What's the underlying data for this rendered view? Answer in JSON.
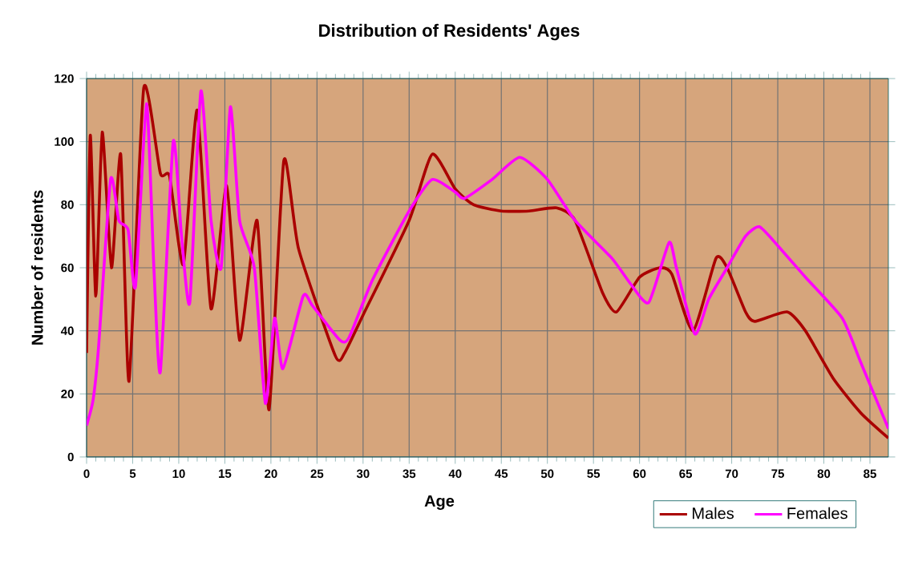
{
  "chart_data": {
    "type": "line",
    "title": "Distribution of Residents' Ages",
    "xlabel": "Age",
    "ylabel": "Number of residents",
    "xlim": [
      0,
      87
    ],
    "xticks": [
      0,
      5,
      10,
      15,
      20,
      25,
      30,
      35,
      40,
      45,
      50,
      55,
      60,
      65,
      70,
      75,
      80,
      85
    ],
    "ylim": [
      0,
      120
    ],
    "yticks": [
      0,
      20,
      40,
      60,
      80,
      100,
      120
    ],
    "grid": true,
    "legend": "bottom right",
    "marker": "none",
    "line_style": "solid",
    "series": [
      {
        "name": "Males",
        "color": "#aa0000",
        "x": [
          0,
          0.4,
          1,
          1.7,
          2.7,
          3.7,
          4.6,
          6.2,
          8,
          9,
          10.5,
          12,
          13.5,
          15.2,
          16.6,
          18.5,
          19.8,
          21.4,
          23,
          27,
          28,
          30,
          35,
          37.5,
          40,
          42,
          45,
          48,
          51,
          53,
          56,
          57.5,
          60,
          62.2,
          63.5,
          65.8,
          68.3,
          69.5,
          71.5,
          72.5,
          76,
          78,
          81,
          84,
          87
        ],
        "values": [
          33,
          102,
          51,
          103,
          60,
          96,
          24,
          117,
          90,
          89,
          61,
          110,
          47,
          86,
          37,
          75,
          15,
          94,
          66,
          32,
          33,
          45,
          75,
          96,
          85,
          80,
          78,
          78,
          79,
          75,
          52,
          46,
          57,
          60,
          58,
          40,
          63,
          60,
          46,
          43,
          46,
          40,
          25,
          14,
          6
        ]
      },
      {
        "name": "Females",
        "color": "#ff00ff",
        "x": [
          0,
          0.7,
          1.3,
          2.6,
          3.5,
          4.5,
          5.3,
          6.5,
          7.3,
          8,
          9.4,
          10.3,
          11.2,
          12.4,
          13.5,
          14.6,
          15.6,
          16.6,
          18.2,
          19.4,
          20.4,
          21.3,
          23.5,
          24.5,
          27.5,
          28.5,
          31,
          35,
          37.5,
          40,
          41,
          44,
          47,
          50,
          53,
          57,
          59,
          61,
          63.2,
          64,
          66,
          67.5,
          69.5,
          71.5,
          73,
          75,
          78,
          82,
          84,
          87
        ],
        "values": [
          10,
          18,
          35,
          88,
          75,
          72,
          54,
          112,
          60,
          27,
          100,
          70,
          49,
          116,
          75,
          60,
          111,
          75,
          60,
          17,
          44,
          28,
          51,
          48,
          37,
          38,
          56,
          78,
          88,
          84,
          82,
          88,
          95,
          88,
          75,
          63,
          55,
          49,
          68,
          60,
          39,
          50,
          60,
          70,
          73,
          67,
          57,
          44,
          30,
          9
        ]
      }
    ]
  }
}
